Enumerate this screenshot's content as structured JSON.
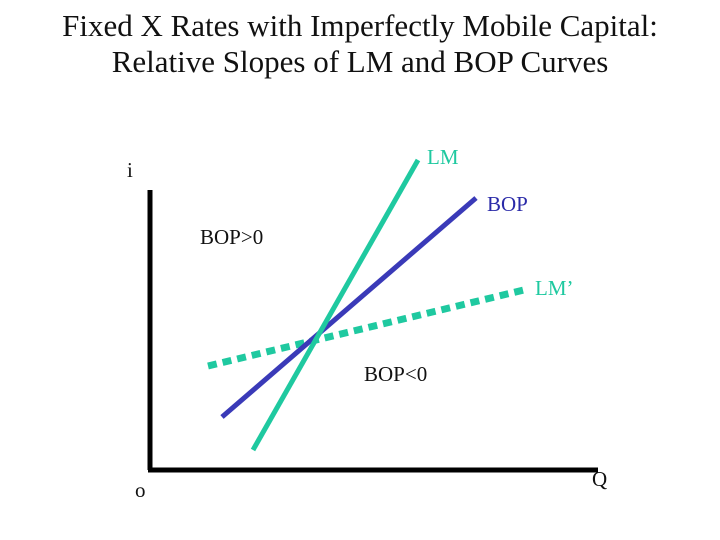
{
  "title": {
    "line1": "Fixed X Rates with Imperfectly Mobile Capital:",
    "line2": "Relative Slopes of LM and BOP Curves"
  },
  "axes": {
    "y_label": "i",
    "x_label": "Q",
    "origin_label": "o"
  },
  "curves": {
    "lm": {
      "label": "LM",
      "color": "#1fc9a0"
    },
    "bop": {
      "label": "BOP",
      "color": "#3a3ab8"
    },
    "lm_prime": {
      "label": "LM’",
      "color": "#1fc9a0",
      "style": "dashed"
    }
  },
  "regions": {
    "above": "BOP>0",
    "below": "BOP<0"
  },
  "colors": {
    "axis": "#000000",
    "lm_text": "#1fc9a0",
    "bop_text": "#2a2aa8",
    "lm_prime_text": "#1fc9a0"
  }
}
